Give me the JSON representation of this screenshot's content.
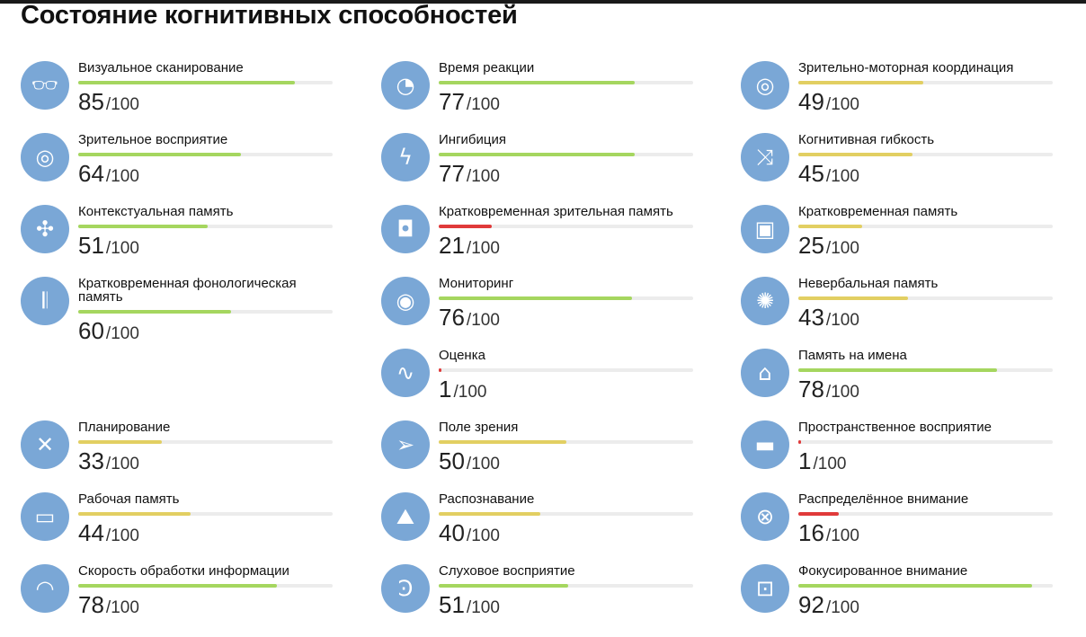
{
  "title": "Состояние когнитивных способностей",
  "max_label": "/100",
  "colors": {
    "high": "#a5d65f",
    "mid": "#e2cf62",
    "low": "#e03a3a",
    "track": "#ececec",
    "icon_bg": "#7aa7d6"
  },
  "columns": [
    [
      {
        "label": "Визуальное сканирование",
        "score": 85,
        "icon": "glasses-icon"
      },
      {
        "label": "Зрительное восприятие",
        "score": 64,
        "icon": "circles-icon"
      },
      {
        "label": "Контекстуальная память",
        "score": 51,
        "icon": "puzzle-icon"
      },
      {
        "label": "Кратковременная фонологическая память",
        "score": 60,
        "icon": "soundwave-icon"
      },
      {
        "label": "Планирование",
        "score": 33,
        "icon": "plan-icon"
      },
      {
        "label": "Рабочая память",
        "score": 44,
        "icon": "battery-icon"
      },
      {
        "label": "Скорость обработки информации",
        "score": 78,
        "icon": "speedometer-icon"
      }
    ],
    [
      {
        "label": "Время реакции",
        "score": 77,
        "icon": "stopwatch-icon"
      },
      {
        "label": "Ингибиция",
        "score": 77,
        "icon": "lightning-icon"
      },
      {
        "label": "Кратковременная зрительная память",
        "score": 21,
        "icon": "camera-icon"
      },
      {
        "label": "Мониторинг",
        "score": 76,
        "icon": "eye-rotate-icon"
      },
      {
        "label": "Оценка",
        "score": 1,
        "icon": "path-icon"
      },
      {
        "label": "Поле зрения",
        "score": 50,
        "icon": "paper-plane-icon"
      },
      {
        "label": "Распознавание",
        "score": 40,
        "icon": "mountains-icon"
      },
      {
        "label": "Слуховое восприятие",
        "score": 51,
        "icon": "ear-icon"
      }
    ],
    [
      {
        "label": "Зрительно-моторная координация",
        "score": 49,
        "icon": "target-rotate-icon"
      },
      {
        "label": "Когнитивная гибкость",
        "score": 45,
        "icon": "shuffle-icon"
      },
      {
        "label": "Кратковременная память",
        "score": 25,
        "icon": "picture-icon"
      },
      {
        "label": "Невербальная память",
        "score": 43,
        "icon": "aperture-icon"
      },
      {
        "label": "Память на имена",
        "score": 78,
        "icon": "tag-icon"
      },
      {
        "label": "Пространственное восприятие",
        "score": 1,
        "icon": "box-icon"
      },
      {
        "label": "Распределённое внимание",
        "score": 16,
        "icon": "crosshair-icon"
      },
      {
        "label": "Фокусированное внимание",
        "score": 92,
        "icon": "focus-icon"
      }
    ]
  ]
}
